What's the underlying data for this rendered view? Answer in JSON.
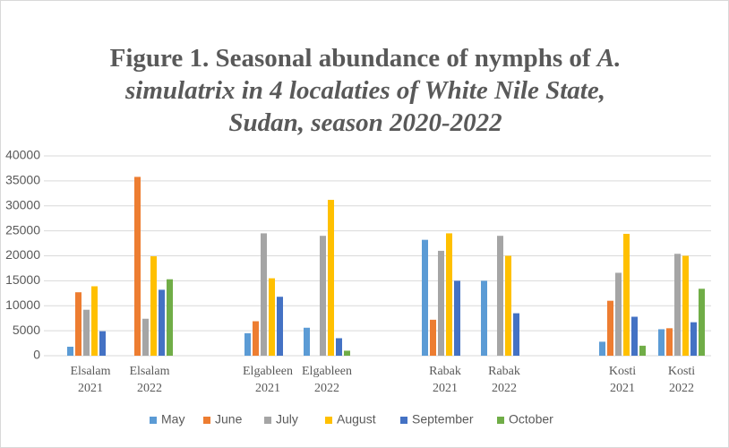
{
  "chart_data": {
    "type": "bar",
    "title": [
      "Figure 1. Seasonal abundance of nymphs of",
      "A. simulatrix in 4 localaties of White Nile State, Sudan, season 2020-2022"
    ],
    "categories": [
      "Elsalam 2021",
      "Elsalam 2022",
      null,
      "Elgableen 2021",
      "Elgableen 2022",
      null,
      "Rabak 2021",
      "Rabak 2022",
      null,
      "Kosti 2021",
      "Kosti 2022"
    ],
    "series": [
      {
        "name": "May",
        "color": "#5b9bd5",
        "values": [
          1800,
          null,
          null,
          4500,
          5600,
          null,
          23200,
          15000,
          null,
          2800,
          5300
        ]
      },
      {
        "name": "June",
        "color": "#ed7d31",
        "values": [
          12700,
          35800,
          null,
          6900,
          null,
          null,
          7200,
          null,
          null,
          11000,
          5500
        ]
      },
      {
        "name": "July",
        "color": "#a5a5a5",
        "values": [
          9200,
          7400,
          null,
          24500,
          24000,
          null,
          21000,
          24000,
          null,
          16600,
          20400
        ]
      },
      {
        "name": "August",
        "color": "#ffc000",
        "values": [
          13900,
          19900,
          null,
          15500,
          31200,
          null,
          24500,
          20000,
          null,
          24400,
          20000
        ]
      },
      {
        "name": "September",
        "color": "#4472c4",
        "values": [
          4900,
          13200,
          null,
          11800,
          3500,
          null,
          15000,
          8500,
          null,
          7800,
          6700
        ]
      },
      {
        "name": "October",
        "color": "#70ad47",
        "values": [
          null,
          15300,
          null,
          null,
          1000,
          null,
          null,
          null,
          null,
          2000,
          13400
        ]
      }
    ],
    "ylim": [
      0,
      40000
    ],
    "yticks": [
      0,
      5000,
      10000,
      15000,
      20000,
      25000,
      30000,
      35000,
      40000
    ],
    "grid": true,
    "legend": "bottom"
  }
}
